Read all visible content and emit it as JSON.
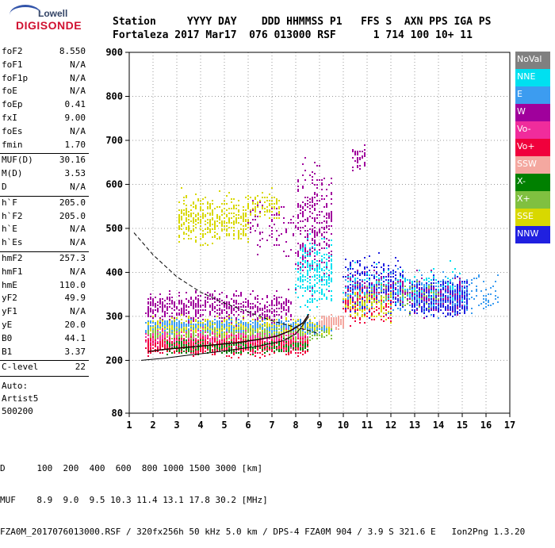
{
  "logo": {
    "line1": "Lowell",
    "line2": "DIGISONDE"
  },
  "header": {
    "line1": "Station     YYYY DAY    DDD HHMMSS P1   FFS S  AXN PPS IGA PS",
    "line2": "Fortaleza 2017 Mar17  076 013000 RSF      1 714 100 10+ 11"
  },
  "params": {
    "group1": [
      {
        "label": "foF2",
        "value": "8.550"
      },
      {
        "label": "foF1",
        "value": "N/A"
      },
      {
        "label": "foF1p",
        "value": "N/A"
      },
      {
        "label": "foE",
        "value": "N/A"
      },
      {
        "label": "foEp",
        "value": "0.41"
      },
      {
        "label": "fxI",
        "value": "9.00"
      },
      {
        "label": "foEs",
        "value": "N/A"
      },
      {
        "label": "fmin",
        "value": "1.70"
      }
    ],
    "group2": [
      {
        "label": "MUF(D)",
        "value": "30.16"
      },
      {
        "label": "M(D)",
        "value": "3.53"
      },
      {
        "label": "D",
        "value": "N/A"
      }
    ],
    "group3": [
      {
        "label": "h`F",
        "value": "205.0"
      },
      {
        "label": "h`F2",
        "value": "205.0"
      },
      {
        "label": "h`E",
        "value": "N/A"
      },
      {
        "label": "h`Es",
        "value": "N/A"
      }
    ],
    "group4": [
      {
        "label": "hmF2",
        "value": "257.3"
      },
      {
        "label": "hmF1",
        "value": "N/A"
      },
      {
        "label": "hmE",
        "value": "110.0"
      },
      {
        "label": "yF2",
        "value": "49.9"
      },
      {
        "label": "yF1",
        "value": "N/A"
      },
      {
        "label": "yE",
        "value": "20.0"
      },
      {
        "label": "B0",
        "value": "44.1"
      },
      {
        "label": "B1",
        "value": "3.37"
      }
    ],
    "clevel": {
      "label": "C-level",
      "value": "22"
    },
    "auto": [
      "Auto:",
      "Artist5",
      "500200"
    ]
  },
  "legend": [
    {
      "label": "NoVal",
      "color": "#808080"
    },
    {
      "label": "NNE",
      "color": "#00e0f0"
    },
    {
      "label": "E",
      "color": "#3c9cf0"
    },
    {
      "label": "W",
      "color": "#a0009c"
    },
    {
      "label": "Vo-",
      "color": "#f02c9c"
    },
    {
      "label": "Vo+",
      "color": "#f0003c"
    },
    {
      "label": "SSW",
      "color": "#f4a8a0"
    },
    {
      "label": "X-",
      "color": "#008000"
    },
    {
      "label": "X+",
      "color": "#80c040"
    },
    {
      "label": "SSE",
      "color": "#d8d800"
    },
    {
      "label": "NNW",
      "color": "#2020e0"
    }
  ],
  "footer": {
    "line1": "D      100  200  400  600  800 1000 1500 3000 [km]",
    "line2": "MUF    8.9  9.0  9.5 10.3 11.4 13.1 17.8 30.2 [MHz]",
    "line3": "FZA0M_2017076013000.RSF / 320fx256h 50 kHz 5.0 km / DPS-4 FZA0M 904 / 3.9 S 321.6 E   Ion2Png 1.3.20"
  },
  "chart_data": {
    "type": "scatter",
    "title": "",
    "xlabel": "",
    "ylabel": "",
    "xlim": [
      1,
      17
    ],
    "ylim": [
      80,
      900
    ],
    "xticks": [
      1,
      2,
      3,
      4,
      5,
      6,
      7,
      8,
      9,
      10,
      11,
      12,
      13,
      14,
      15,
      16,
      17
    ],
    "yticks": [
      200,
      300,
      400,
      500,
      600,
      700,
      800,
      900
    ],
    "yticks_extra": [
      80
    ],
    "clusters": [
      {
        "series": "E",
        "xr": [
          1.7,
          9.5
        ],
        "yr": [
          255,
          300
        ],
        "n": 1100
      },
      {
        "series": "W",
        "xr": [
          1.7,
          7.8
        ],
        "yr": [
          275,
          370
        ],
        "n": 600
      },
      {
        "series": "Vo-",
        "xr": [
          1.7,
          8.5
        ],
        "yr": [
          215,
          280
        ],
        "n": 900
      },
      {
        "series": "Vo+",
        "xr": [
          1.7,
          8.5
        ],
        "yr": [
          205,
          265
        ],
        "n": 800
      },
      {
        "series": "X-",
        "xr": [
          2.5,
          8.5
        ],
        "yr": [
          210,
          255
        ],
        "n": 250
      },
      {
        "series": "X+",
        "xr": [
          1.7,
          9.5
        ],
        "yr": [
          240,
          290
        ],
        "n": 350
      },
      {
        "series": "SSE",
        "xr": [
          3.0,
          6.0
        ],
        "yr": [
          450,
          600
        ],
        "n": 420
      },
      {
        "series": "SSE",
        "xr": [
          6.0,
          7.3
        ],
        "yr": [
          500,
          600
        ],
        "n": 90
      },
      {
        "series": "SSE",
        "xr": [
          1.8,
          9.5
        ],
        "yr": [
          250,
          310
        ],
        "n": 250
      },
      {
        "series": "W",
        "xr": [
          8.0,
          9.5
        ],
        "yr": [
          300,
          700
        ],
        "n": 350
      },
      {
        "series": "NNE",
        "xr": [
          8.0,
          9.5
        ],
        "yr": [
          300,
          500
        ],
        "n": 250
      },
      {
        "series": "SSW",
        "xr": [
          9.0,
          10.0
        ],
        "yr": [
          270,
          310
        ],
        "n": 200
      },
      {
        "series": "NNW",
        "xr": [
          12.8,
          15.2
        ],
        "yr": [
          290,
          400
        ],
        "n": 650
      },
      {
        "series": "NNW",
        "xr": [
          10.0,
          12.5
        ],
        "yr": [
          280,
          460
        ],
        "n": 350
      },
      {
        "series": "W",
        "xr": [
          10.0,
          15.0
        ],
        "yr": [
          290,
          420
        ],
        "n": 300
      },
      {
        "series": "E",
        "xr": [
          10.0,
          16.5
        ],
        "yr": [
          290,
          420
        ],
        "n": 300
      },
      {
        "series": "NNE",
        "xr": [
          10.0,
          15.0
        ],
        "yr": [
          300,
          440
        ],
        "n": 120
      },
      {
        "series": "Vo+",
        "xr": [
          10.0,
          12.0
        ],
        "yr": [
          270,
          380
        ],
        "n": 120
      },
      {
        "series": "SSE",
        "xr": [
          10.0,
          12.0
        ],
        "yr": [
          270,
          380
        ],
        "n": 100
      },
      {
        "series": "X+",
        "xr": [
          10.5,
          14.0
        ],
        "yr": [
          300,
          400
        ],
        "n": 80
      },
      {
        "series": "W",
        "xr": [
          10.4,
          10.9
        ],
        "yr": [
          620,
          700
        ],
        "n": 40
      },
      {
        "series": "W",
        "xr": [
          6.0,
          8.0
        ],
        "yr": [
          400,
          600
        ],
        "n": 80
      }
    ],
    "profile_dashed": {
      "x": [
        1.2,
        2.0,
        3.0,
        4.0,
        5.0,
        6.0,
        7.0,
        8.0,
        8.55,
        9.0
      ],
      "y": [
        490,
        440,
        390,
        355,
        330,
        310,
        290,
        275,
        268,
        260
      ]
    },
    "profile_solid": {
      "x": [
        1.5,
        2.5,
        3.5,
        4.5,
        5.5,
        6.5,
        7.5,
        8.0,
        8.3,
        8.55
      ],
      "y": [
        200,
        205,
        212,
        218,
        225,
        233,
        245,
        260,
        280,
        300
      ]
    },
    "trace_black": {
      "x": [
        1.8,
        2.5,
        3.5,
        4.5,
        5.5,
        6.5,
        7.2,
        7.8,
        8.3,
        8.55
      ],
      "y": [
        220,
        225,
        230,
        235,
        240,
        248,
        255,
        268,
        285,
        305
      ]
    }
  }
}
